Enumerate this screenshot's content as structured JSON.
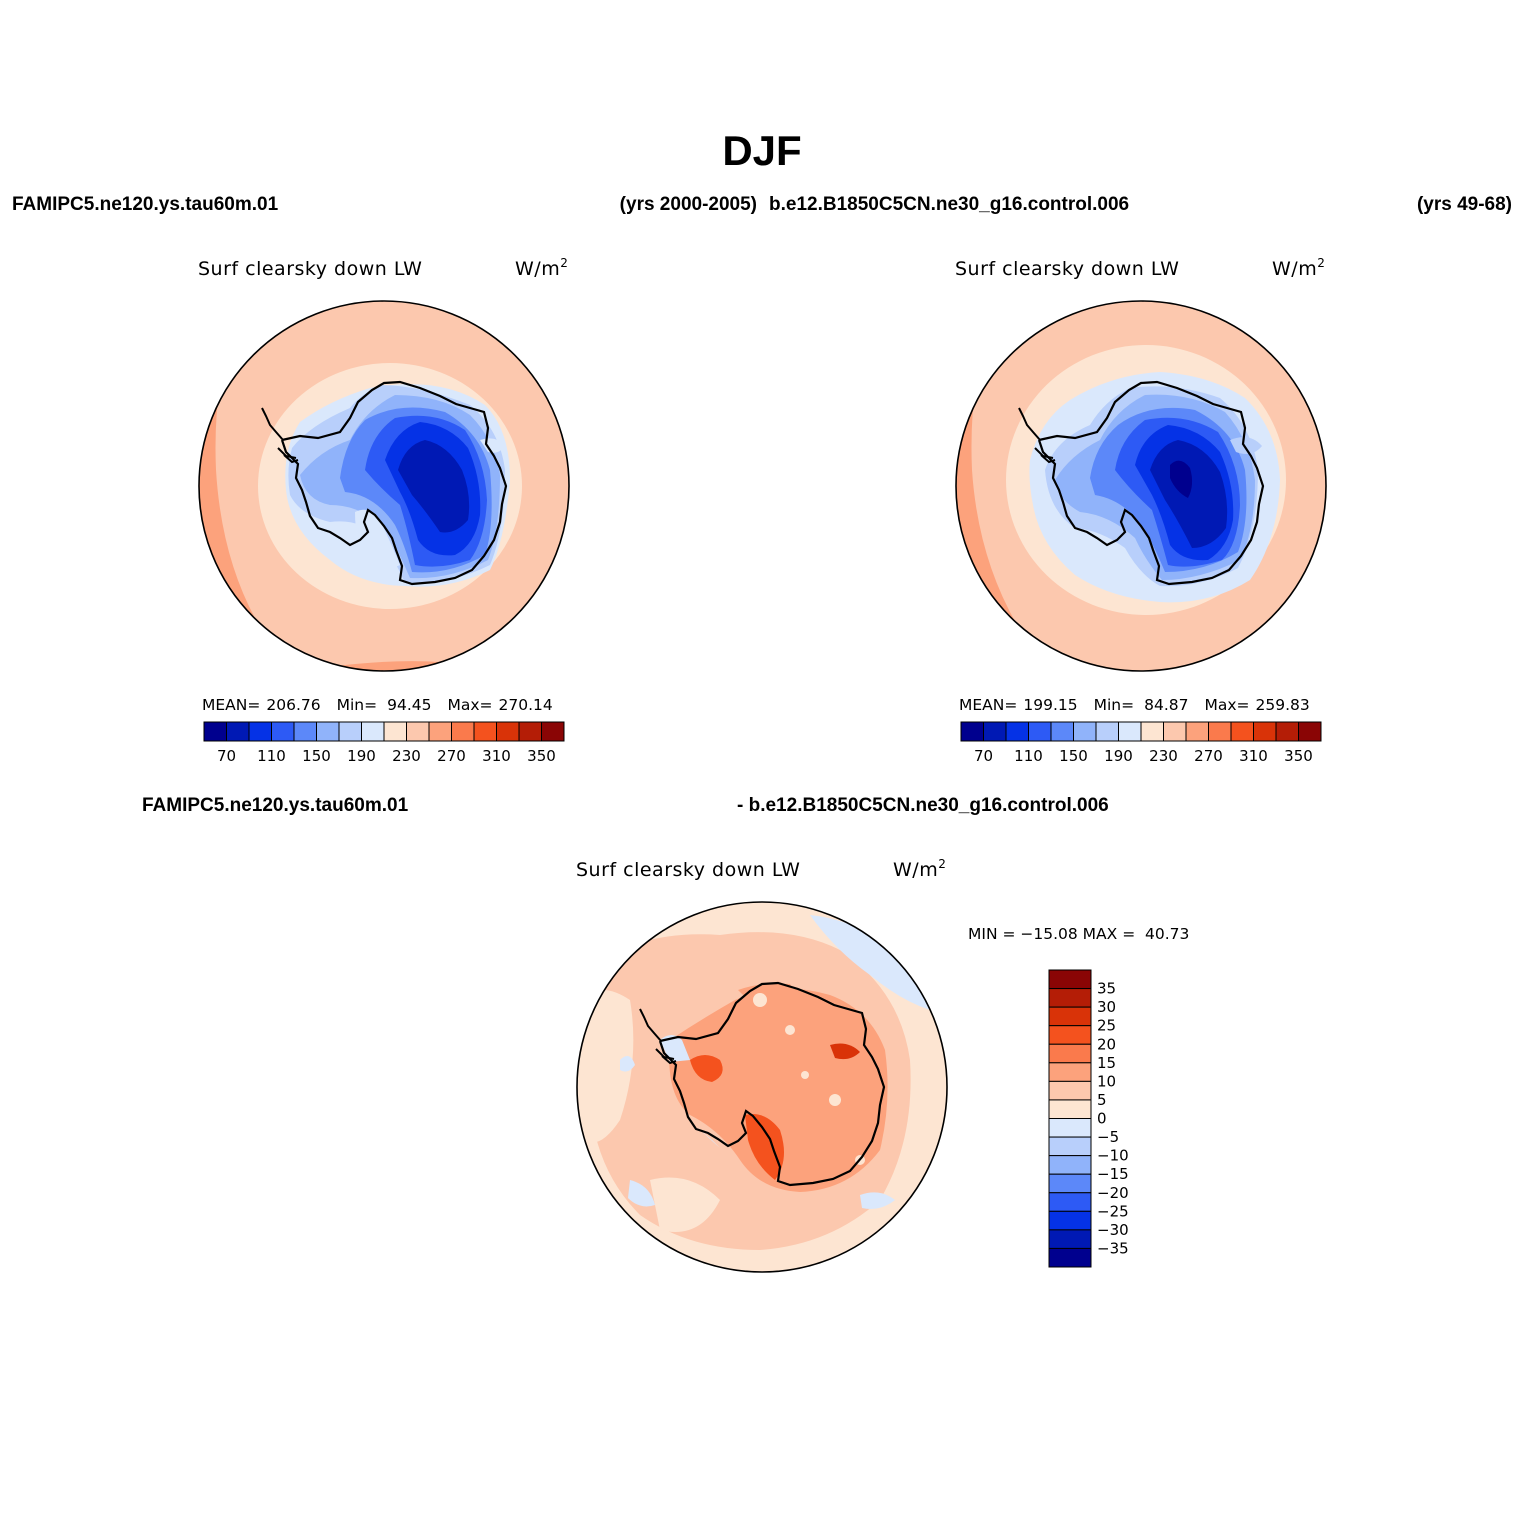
{
  "figure": {
    "title": "DJF",
    "case1_name": "FAMIPC5.ne120.ys.tau60m.01",
    "case1_years": "(yrs 2000-2005)",
    "case2_name": "b.e12.B1850C5CN.ne30_g16.control.006",
    "case2_years": "(yrs 49-68)",
    "diff_left": "FAMIPC5.ne120.ys.tau60m.01",
    "diff_right": "- b.e12.B1850C5CN.ne30_g16.control.006"
  },
  "panels": [
    {
      "variable": "Surf clearsky down LW",
      "units_base": "W/m",
      "units_sup": "2",
      "stats_mean_label": "MEAN=",
      "stats_mean": "206.76",
      "stats_min_label": "Min=",
      "stats_min": "94.45",
      "stats_max_label": "Max=",
      "stats_max": "270.14"
    },
    {
      "variable": "Surf clearsky down LW",
      "units_base": "W/m",
      "units_sup": "2",
      "stats_mean_label": "MEAN=",
      "stats_mean": "199.15",
      "stats_min_label": "Min=",
      "stats_min": "84.87",
      "stats_max_label": "Max=",
      "stats_max": "259.83"
    },
    {
      "variable": "Surf clearsky down LW",
      "units_base": "W/m",
      "units_sup": "2",
      "range_text": "MIN = −15.08 MAX =  40.73"
    }
  ],
  "colorbar_main": {
    "colors": [
      "#00008e",
      "#0019b4",
      "#0532e6",
      "#2d5af5",
      "#5c88f9",
      "#90b3fa",
      "#b8cffb",
      "#dae8fc",
      "#fde5d2",
      "#fcc8ae",
      "#fca27c",
      "#fa7a4c",
      "#f4521e",
      "#d93308",
      "#b41d06",
      "#8a0505"
    ],
    "tick_labels": [
      "70",
      "110",
      "150",
      "190",
      "230",
      "270",
      "310",
      "350"
    ]
  },
  "colorbar_diff": {
    "colors_top_to_bottom": [
      "#8a0505",
      "#b41d06",
      "#d93308",
      "#f4521e",
      "#fa7a4c",
      "#fca27c",
      "#fcc8ae",
      "#fde5d2",
      "#dae8fc",
      "#b8cffb",
      "#90b3fa",
      "#5c88f9",
      "#2d5af5",
      "#0532e6",
      "#0019b4",
      "#00008e"
    ],
    "tick_labels": [
      "35",
      "30",
      "25",
      "20",
      "15",
      "10",
      "5",
      "0",
      "−5",
      "−10",
      "−15",
      "−20",
      "−25",
      "−30",
      "−35"
    ]
  }
}
